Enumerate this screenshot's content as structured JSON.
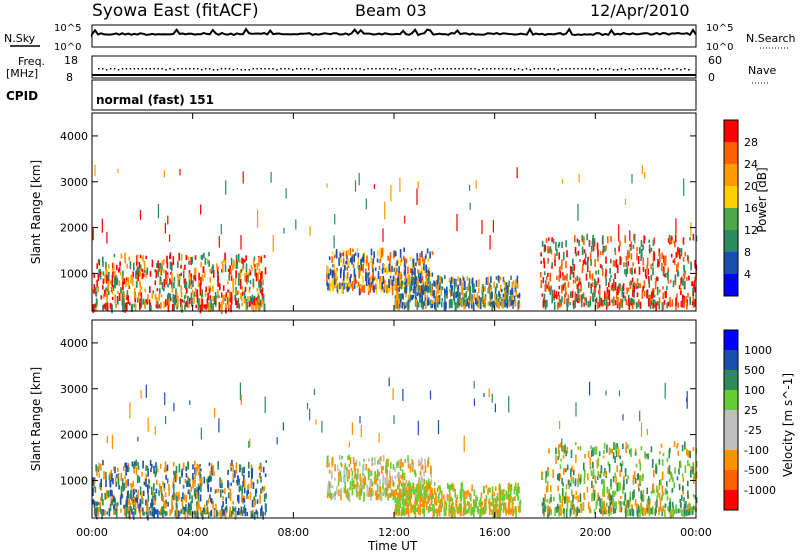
{
  "header": {
    "station": "Syowa East (fitACF)",
    "beam": "Beam 03",
    "date": "12/Apr/2010"
  },
  "status_panel": {
    "nsky_label": "N.Sky",
    "nsky_top_tick": "10^5",
    "nsky_bottom_tick": "10^0",
    "nsearch_label": "N.Search",
    "nsearch_top_tick": "10^5",
    "nsearch_bottom_tick": "10^0",
    "freq_label": "Freq.",
    "freq_unit": "[MHz]",
    "freq_top_tick": "18",
    "freq_bottom_tick": "8",
    "nave_label": "Nave",
    "nave_top_tick": "60",
    "nave_bottom_tick": "0",
    "cpid_label": "CPID",
    "cpid_value": "normal (fast) 151"
  },
  "colorbars": {
    "power": {
      "label": "Power [dB]",
      "colors": [
        "#0000ff",
        "#1a4fb0",
        "#2a8c60",
        "#4da84d",
        "#ffd000",
        "#ff9a00",
        "#ff6000",
        "#ff0000"
      ],
      "ticks": [
        "4",
        "8",
        "12",
        "16",
        "20",
        "24",
        "28"
      ]
    },
    "velocity": {
      "label": "Velocity [m s^-1]",
      "colors": [
        "#ff0000",
        "#ff6000",
        "#ff9000",
        "#bfbfbf",
        "#bfbfbf",
        "#66cc33",
        "#2e8b57",
        "#1a4fb0",
        "#0000ff"
      ],
      "ticks": [
        "-1000",
        "-500",
        "-100",
        "-25",
        "25",
        "100",
        "500",
        "1000"
      ]
    }
  },
  "x_axis": {
    "label": "Time UT",
    "ticks": [
      "00:00",
      "04:00",
      "08:00",
      "12:00",
      "16:00",
      "20:00",
      "00:00"
    ]
  },
  "chart_data": [
    {
      "type": "heatmap",
      "name": "power",
      "ylabel": "Slant Range [km]",
      "xlabel": "Time UT",
      "ylim": [
        180,
        4500
      ],
      "xlim_hours": [
        0,
        24
      ],
      "yticks": [
        1000,
        2000,
        3000,
        4000
      ],
      "colorbar_range": [
        0,
        30
      ],
      "approx_regions": [
        {
          "t0": 0.0,
          "t1": 6.9,
          "r0": 250,
          "r1": 1400,
          "level": "mixed",
          "note_colors": [
            "#2a8c60",
            "#ff9a00",
            "#ff0000"
          ]
        },
        {
          "t0": 9.3,
          "t1": 13.5,
          "r0": 650,
          "r1": 1500,
          "level": "mixed",
          "note_colors": [
            "#1a4fb0",
            "#ffd000",
            "#ff6000"
          ]
        },
        {
          "t0": 12.0,
          "t1": 17.0,
          "r0": 300,
          "r1": 900,
          "level": "mixed",
          "note_colors": [
            "#ff9a00",
            "#2a8c60",
            "#1a4fb0"
          ]
        },
        {
          "t0": 17.8,
          "t1": 24.0,
          "r0": 300,
          "r1": 1800,
          "level": "mixed",
          "note_colors": [
            "#ff6000",
            "#ff0000",
            "#2a8c60"
          ]
        }
      ]
    },
    {
      "type": "heatmap",
      "name": "velocity",
      "ylabel": "Slant Range [km]",
      "xlabel": "Time UT",
      "ylim": [
        180,
        4500
      ],
      "xlim_hours": [
        0,
        24
      ],
      "yticks": [
        1000,
        2000,
        3000,
        4000
      ],
      "colorbar_range": [
        -1000,
        1000
      ],
      "approx_regions": [
        {
          "t0": 0.0,
          "t1": 6.9,
          "r0": 250,
          "r1": 1400,
          "level": "mixed",
          "note_colors": [
            "#ff9000",
            "#1a4fb0",
            "#2e8b57"
          ]
        },
        {
          "t0": 9.3,
          "t1": 13.5,
          "r0": 650,
          "r1": 1500,
          "level": "mixed",
          "note_colors": [
            "#66cc33",
            "#ff9000",
            "#bfbfbf"
          ]
        },
        {
          "t0": 12.0,
          "t1": 17.0,
          "r0": 300,
          "r1": 900,
          "level": "mixed",
          "note_colors": [
            "#66cc33",
            "#ff9000"
          ]
        },
        {
          "t0": 17.8,
          "t1": 24.0,
          "r0": 300,
          "r1": 1800,
          "level": "mixed",
          "note_colors": [
            "#2e8b57",
            "#ff9000",
            "#66cc33"
          ]
        }
      ]
    }
  ]
}
